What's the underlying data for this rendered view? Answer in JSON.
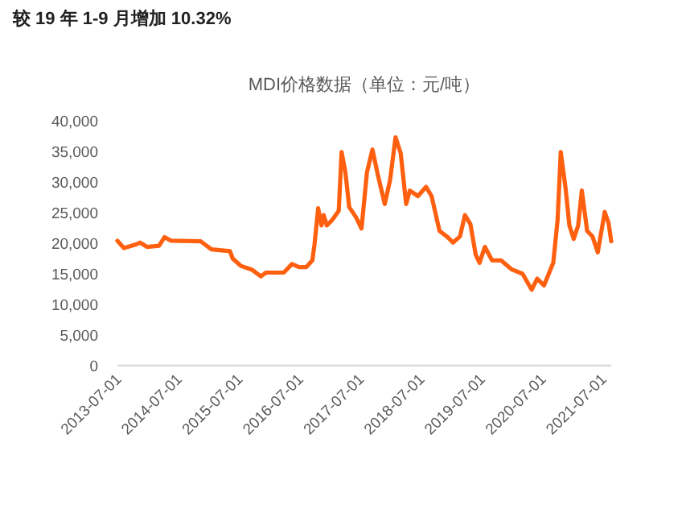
{
  "chart_data": {
    "type": "line",
    "title": "较 19 年 1-9 月增加 10.32%",
    "subtitle": "MDI价格数据（单位：元/吨）",
    "x": [
      "2013-07-01",
      "2013-08-09",
      "2013-10-22",
      "2013-11-14",
      "2013-12-26",
      "2014-03-09",
      "2014-04-11",
      "2014-05-20",
      "2014-11-15",
      "2015-01-18",
      "2015-05-10",
      "2015-05-26",
      "2015-07-14",
      "2015-09-17",
      "2015-11-12",
      "2015-12-14",
      "2016-03-29",
      "2016-05-17",
      "2016-06-28",
      "2016-08-12",
      "2016-09-17",
      "2016-09-30",
      "2016-10-22",
      "2016-11-11",
      "2016-11-24",
      "2016-12-13",
      "2017-01-15",
      "2017-02-23",
      "2017-03-12",
      "2017-04-04",
      "2017-04-27",
      "2017-06-08",
      "2017-07-10",
      "2017-08-12",
      "2017-09-14",
      "2017-10-16",
      "2017-11-27",
      "2017-12-29",
      "2018-01-31",
      "2018-03-03",
      "2018-04-05",
      "2018-04-27",
      "2018-06-15",
      "2018-08-03",
      "2018-09-05",
      "2018-10-23",
      "2018-12-10",
      "2019-01-12",
      "2019-02-23",
      "2019-03-25",
      "2019-04-27",
      "2019-05-29",
      "2019-06-21",
      "2019-07-23",
      "2019-09-04",
      "2019-10-28",
      "2020-01-02",
      "2020-03-06",
      "2020-04-30",
      "2020-06-02",
      "2020-07-13",
      "2020-09-07",
      "2020-10-03",
      "2020-10-22",
      "2020-11-20",
      "2020-12-13",
      "2021-01-08",
      "2021-02-04",
      "2021-02-26",
      "2021-03-30",
      "2021-05-01",
      "2021-06-02",
      "2021-07-14",
      "2021-08-06",
      "2021-08-22"
    ],
    "series": [
      {
        "color": "#ff6010",
        "values": [
          20400,
          19200,
          19800,
          20100,
          19400,
          19600,
          21000,
          20400,
          20300,
          19000,
          18700,
          17500,
          16300,
          15700,
          14600,
          15200,
          15200,
          16600,
          16100,
          16100,
          17200,
          19800,
          25700,
          22900,
          24600,
          22900,
          23800,
          25300,
          34900,
          31600,
          25900,
          24200,
          22400,
          31600,
          35300,
          31200,
          26400,
          30300,
          37300,
          34700,
          26400,
          28600,
          27700,
          29200,
          27700,
          22000,
          21000,
          20100,
          21100,
          24600,
          23100,
          18100,
          16800,
          19400,
          17200,
          17200,
          15700,
          15000,
          12400,
          14200,
          13100,
          16800,
          23800,
          34900,
          29000,
          22900,
          20700,
          22900,
          28600,
          22000,
          21100,
          18500,
          25100,
          23300,
          20300
        ]
      }
    ],
    "xlim": [
      "2013-07-01",
      "2021-08-22"
    ],
    "xticks": [
      "2013-07-01",
      "2014-07-01",
      "2015-07-01",
      "2016-07-01",
      "2017-07-01",
      "2018-07-01",
      "2019-07-01",
      "2020-07-01",
      "2021-07-01"
    ],
    "ylim": [
      0,
      40000
    ],
    "yticks": [
      0,
      {
        "value": 5000,
        "label": "5,000"
      },
      {
        "value": 10000,
        "label": "10,000"
      },
      {
        "value": 15000,
        "label": "15,000"
      },
      {
        "value": 20000,
        "label": "20,000"
      },
      {
        "value": 25000,
        "label": "25,000"
      },
      {
        "value": 30000,
        "label": "30,000"
      },
      {
        "value": 35000,
        "label": "35,000"
      },
      {
        "value": 40000,
        "label": "40,000"
      }
    ]
  }
}
